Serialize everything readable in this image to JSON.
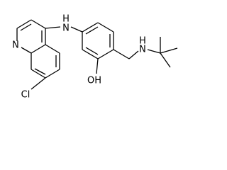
{
  "nodes": [
    {
      "label": "N"
    },
    {
      "label": "H"
    },
    {
      "label": "N"
    },
    {
      "label": "Cl"
    },
    {
      "label": "OH"
    },
    {
      "label": "H"
    },
    {
      "label": "N"
    }
  ]
}
